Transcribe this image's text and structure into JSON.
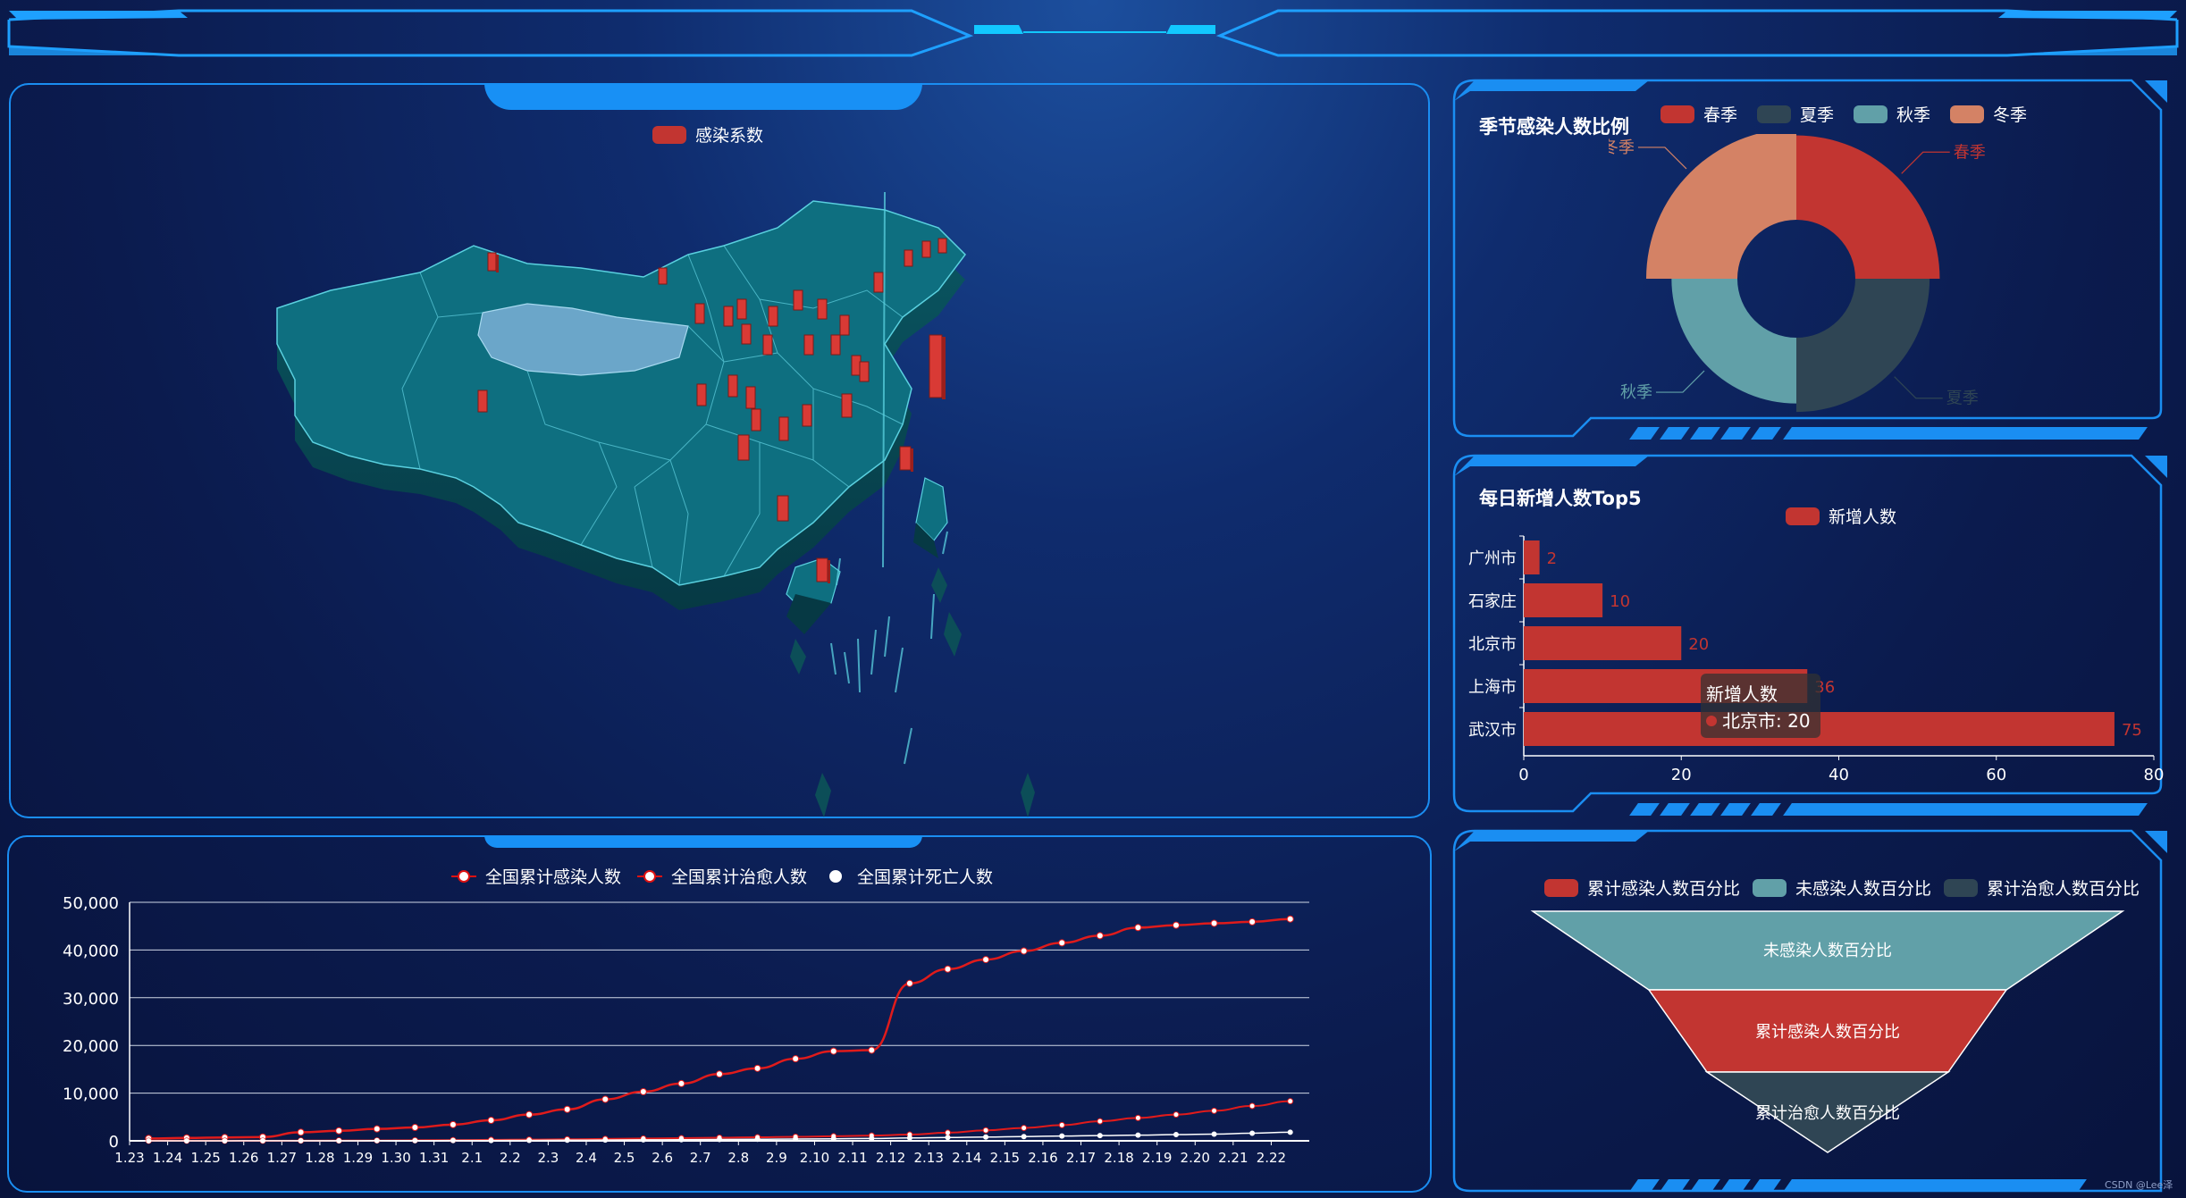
{
  "top_left_panel": {
    "legend_label": "感染系数",
    "legend_color": "#c23531",
    "map_fill": "#0e6f80",
    "highlight_fill": "#6ba6c9"
  },
  "season_panel": {
    "title": "季节感染人数比例",
    "legend": [
      {
        "label": "春季",
        "color": "#c23531"
      },
      {
        "label": "夏季",
        "color": "#2f4554"
      },
      {
        "label": "秋季",
        "color": "#61a0a8"
      },
      {
        "label": "冬季",
        "color": "#d48265"
      }
    ],
    "labels": [
      "春季",
      "夏季",
      "秋季",
      "冬季"
    ]
  },
  "top5_panel": {
    "title": "每日新增人数Top5",
    "legend_label": "新增人数",
    "bar_color": "#c23531",
    "tooltip": {
      "title": "新增人数",
      "item": "北京市: 20"
    }
  },
  "funnel_panel": {
    "legend": [
      {
        "label": "累计感染人数百分比",
        "color": "#c23531"
      },
      {
        "label": "未感染人数百分比",
        "color": "#61a0a8"
      },
      {
        "label": "累计治愈人数百分比",
        "color": "#2f4554"
      }
    ],
    "levels": [
      {
        "label": "未感染人数百分比",
        "color": "#61a0a8"
      },
      {
        "label": "累计感染人数百分比",
        "color": "#c23531"
      },
      {
        "label": "累计治愈人数百分比",
        "color": "#2f4554"
      }
    ]
  },
  "line_panel": {
    "legend": [
      "全国累计感染人数",
      "全国累计治愈人数",
      "全国累计死亡人数"
    ]
  },
  "watermark": "CSDN @Lee泽",
  "chart_data": [
    {
      "type": "bar",
      "orientation": "horizontal",
      "title": "每日新增人数Top5",
      "categories": [
        "广州市",
        "石家庄",
        "北京市",
        "上海市",
        "武汉市"
      ],
      "series": [
        {
          "name": "新增人数",
          "values": [
            2,
            10,
            20,
            36,
            75
          ]
        }
      ],
      "xlim": [
        0,
        80
      ],
      "xticks": [
        0,
        20,
        40,
        60,
        80
      ],
      "legend_position": "top"
    },
    {
      "type": "pie",
      "title": "季节感染人数比例",
      "variant": "nightingale-donut",
      "categories": [
        "春季",
        "夏季",
        "秋季",
        "冬季"
      ],
      "values": [
        100,
        88,
        78,
        108
      ],
      "legend_position": "top"
    },
    {
      "type": "line",
      "x": [
        "1.23",
        "1.24",
        "1.25",
        "1.26",
        "1.27",
        "1.28",
        "1.29",
        "1.30",
        "1.31",
        "2.1",
        "2.2",
        "2.3",
        "2.4",
        "2.5",
        "2.6",
        "2.7",
        "2.8",
        "2.9",
        "2.10",
        "2.11",
        "2.12",
        "2.13",
        "2.14",
        "2.15",
        "2.16",
        "2.17",
        "2.18",
        "2.19",
        "2.20",
        "2.21",
        "2.22"
      ],
      "series": [
        {
          "name": "全国累计感染人数",
          "values": [
            500,
            600,
            700,
            800,
            1800,
            2100,
            2500,
            2800,
            3400,
            4300,
            5500,
            6600,
            8700,
            10300,
            12000,
            14000,
            15200,
            17200,
            18800,
            19000,
            33000,
            36000,
            38000,
            39800,
            41500,
            43000,
            44700,
            45200,
            45600,
            45900,
            46500
          ]
        },
        {
          "name": "全国累计治愈人数",
          "values": [
            10,
            15,
            20,
            30,
            40,
            60,
            80,
            110,
            150,
            200,
            260,
            320,
            400,
            480,
            560,
            650,
            750,
            850,
            950,
            1100,
            1300,
            1700,
            2200,
            2700,
            3300,
            4100,
            4800,
            5500,
            6300,
            7300,
            8300
          ]
        },
        {
          "name": "全国累计死亡人数",
          "values": [
            5,
            8,
            10,
            15,
            20,
            30,
            40,
            50,
            60,
            80,
            100,
            130,
            160,
            200,
            240,
            280,
            320,
            380,
            430,
            500,
            600,
            700,
            800,
            900,
            1000,
            1100,
            1200,
            1300,
            1400,
            1600,
            1800
          ]
        }
      ],
      "ylim": [
        0,
        50000
      ],
      "yticks": [
        "0",
        "10,000",
        "20,000",
        "30,000",
        "40,000",
        "50,000"
      ],
      "grid": true,
      "legend_position": "top"
    }
  ]
}
